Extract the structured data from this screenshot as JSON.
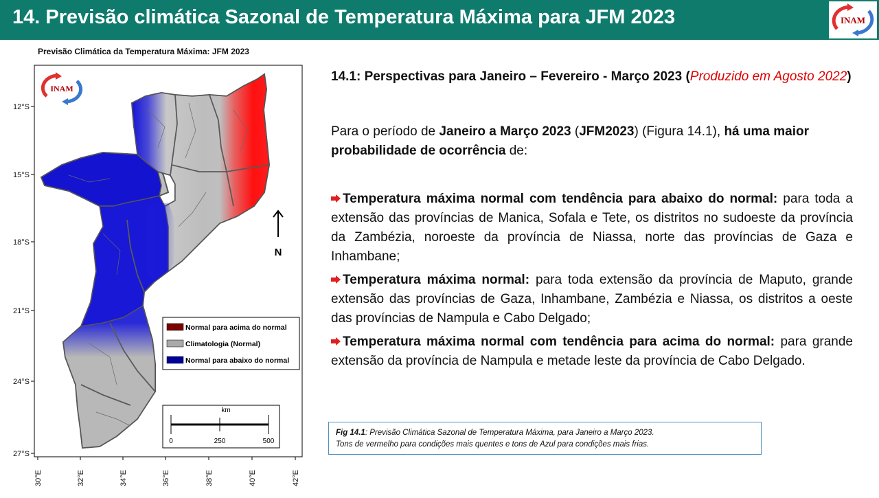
{
  "header": {
    "title": "14. Previsão climática Sazonal de Temperatura Máxima para JFM 2023",
    "logo_text": "INAM",
    "bg_color": "#0f7b6d"
  },
  "map": {
    "title": "Previsão Climática da Temperatura Máxima: JFM 2023",
    "logo_text": "INAM",
    "y_ticks": [
      "12°S",
      "15°S",
      "18°S",
      "21°S",
      "24°S",
      "27°S"
    ],
    "x_ticks": [
      "30°E",
      "32°E",
      "34°E",
      "36°E",
      "38°E",
      "40°E",
      "42°E"
    ],
    "north_label": "N",
    "legend": [
      {
        "label": "Normal para acima do normal",
        "color": "#7a0000"
      },
      {
        "label": "Climatologia (Normal)",
        "color": "#a9a9a9"
      },
      {
        "label": "Normal para abaixo do normal",
        "color": "#00009a"
      }
    ],
    "scale": {
      "unit": "km",
      "labels": [
        "0",
        "250",
        "500"
      ]
    }
  },
  "section": {
    "title_main": "14.1: Perspectivas para  Janeiro – Fevereiro - Março 2023 (",
    "title_red": "Produzido em Agosto 2022",
    "title_close": ")"
  },
  "intro": {
    "p1": "Para o período de ",
    "b1": "Janeiro a Março 2023",
    "p2": " (",
    "b2": "JFM2023",
    "p3": ") (Figura 14.1), ",
    "b3": "há uma maior probabilidade de ocorrência",
    "p4": " de:"
  },
  "bullets": [
    {
      "bold": "Temperatura máxima normal com tendência para abaixo do normal:",
      "text": " para toda a extensão das províncias de Manica, Sofala e Tete, os distritos no sudoeste da província da Zambézia, noroeste da província de Niassa, norte das províncias de Gaza e Inhambane;"
    },
    {
      "bold": "Temperatura máxima normal:",
      "text": " para toda extensão da província de Maputo, grande extensão das províncias de Gaza, Inhambane, Zambézia e Niassa, os distritos a oeste das províncias de Nampula e Cabo Delgado;"
    },
    {
      "bold": "Temperatura máxima normal com tendência para acima do normal:",
      "text": " para grande extensão da província de Nampula e metade leste da província de Cabo Delgado."
    }
  ],
  "caption": {
    "label": "Fig 14.1",
    "line1": ": Previsão Climática Sazonal de Temperatura Máxima, para Janeiro a Março 2023.",
    "line2": "Tons de vermelho para condições mais quentes e tons de Azul para condições mais frias."
  }
}
